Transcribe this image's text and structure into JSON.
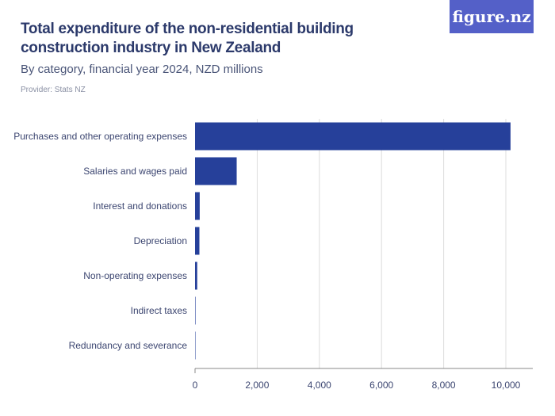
{
  "title": "Total expenditure of the non-residential building construction industry in New Zealand",
  "subtitle": "By category, financial year 2024, NZD millions",
  "provider": "Provider: Stats NZ",
  "logo": "figure.nz",
  "chart_data": {
    "type": "bar",
    "orientation": "horizontal",
    "categories": [
      "Purchases and other operating expenses",
      "Salaries and wages paid",
      "Interest and donations",
      "Depreciation",
      "Non-operating expenses",
      "Indirect taxes",
      "Redundancy and severance"
    ],
    "values": [
      10150,
      1340,
      150,
      140,
      70,
      15,
      2
    ],
    "xlim": [
      0,
      10800
    ],
    "xticks": [
      "0",
      "2,000",
      "4,000",
      "6,000",
      "8,000",
      "10,000"
    ],
    "xtick_values": [
      0,
      2000,
      4000,
      6000,
      8000,
      10000
    ],
    "grid": true,
    "bar_color": "#26409a"
  }
}
